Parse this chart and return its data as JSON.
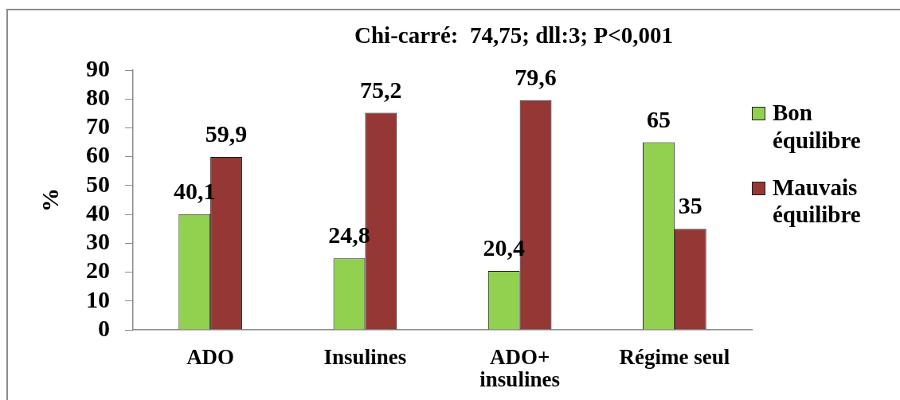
{
  "chart_data": {
    "type": "bar",
    "title": "Chi-carré:  74,75; dll:3; P<0,001",
    "ylabel": "%",
    "categories": [
      "ADO",
      "Insulines",
      "ADO+ insulines",
      "Régime seul"
    ],
    "series": [
      {
        "name": "Bon équilibre",
        "color": "#92d050",
        "values": [
          40.1,
          24.8,
          20.4,
          65
        ],
        "value_labels": [
          "40,1",
          "24,8",
          "20,4",
          "65"
        ]
      },
      {
        "name": "Mauvais équilibre",
        "color": "#953735",
        "values": [
          59.9,
          75.2,
          79.6,
          35
        ],
        "value_labels": [
          "59,9",
          "75,2",
          "79,6",
          "35"
        ]
      }
    ],
    "ylim": [
      0,
      90
    ],
    "yticks": [
      0,
      10,
      20,
      30,
      40,
      50,
      60,
      70,
      80,
      90
    ],
    "legend": "right"
  }
}
